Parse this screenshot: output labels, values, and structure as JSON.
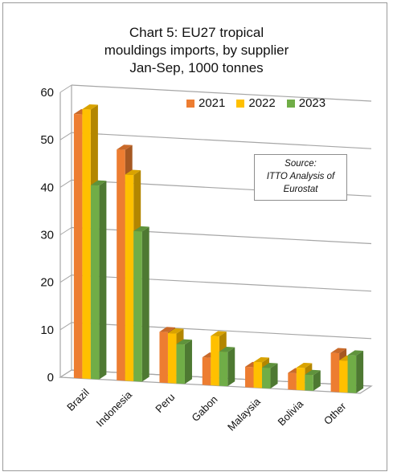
{
  "title_lines": [
    "Chart 5: EU27 tropical",
    "mouldings imports, by supplier",
    "Jan-Sep, 1000 tonnes"
  ],
  "source_lines": [
    "Source:",
    "ITTO Analysis of",
    "Eurostat"
  ],
  "colors": {
    "2021": "#ED7D31",
    "2022": "#FFC000",
    "2023": "#70AD47"
  },
  "chart_data": {
    "type": "bar",
    "style": "3d-clustered-column",
    "title": "Chart 5: EU27 tropical mouldings imports, by supplier Jan-Sep, 1000 tonnes",
    "categories": [
      "Brazil",
      "Indonesia",
      "Peru",
      "Gabon",
      "Malaysia",
      "Bolivia",
      "Other"
    ],
    "series": [
      {
        "name": "2021",
        "values": [
          55.6,
          48.6,
          10.7,
          5.8,
          4.3,
          3.5,
          8.2
        ]
      },
      {
        "name": "2022",
        "values": [
          56.7,
          43.4,
          10.5,
          10.4,
          5.4,
          4.7,
          6.7
        ]
      },
      {
        "name": "2023",
        "values": [
          40.8,
          31.6,
          8.3,
          7.2,
          4.3,
          3.3,
          7.9
        ]
      }
    ],
    "ylim": [
      0,
      60
    ],
    "yticks": [
      0,
      10,
      20,
      30,
      40,
      50,
      60
    ],
    "grid": true,
    "legend_position": "top-right"
  }
}
